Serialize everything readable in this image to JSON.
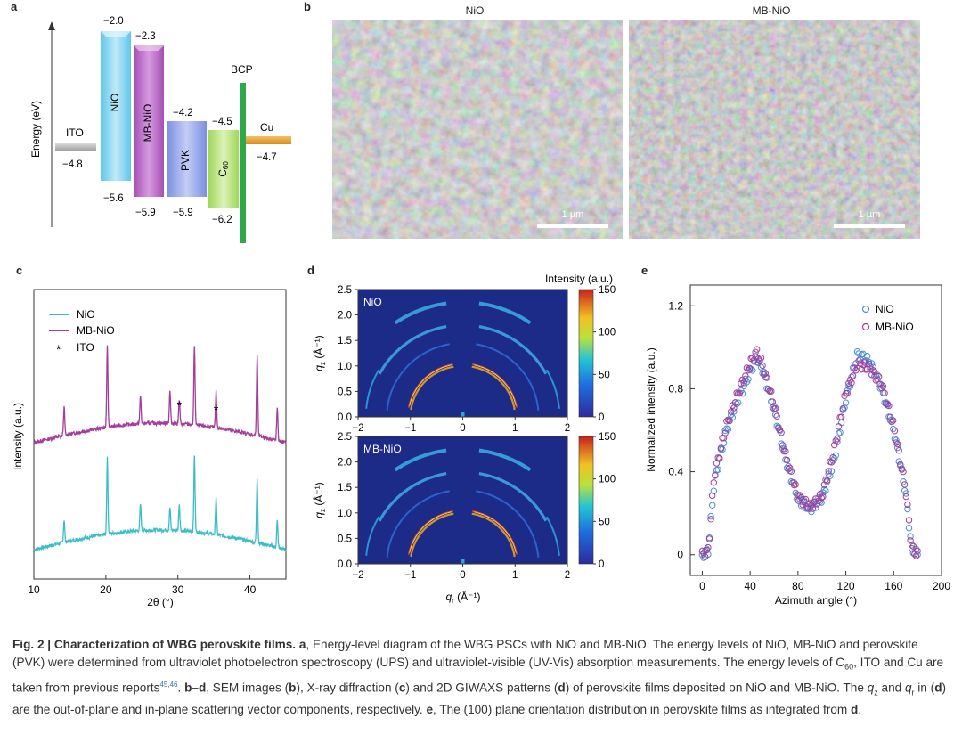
{
  "panels": {
    "a": "a",
    "b": "b",
    "c": "c",
    "d": "d",
    "e": "e"
  },
  "panel_a": {
    "ylabel": "Energy (eV)",
    "layers": [
      {
        "name": "ITO",
        "top": "-4.8",
        "bottom": "",
        "color": "#b5b5b5"
      },
      {
        "name": "NiO",
        "top": "−2.0",
        "bottom": "−5.6",
        "color": "#7fd3ee"
      },
      {
        "name": "MB-NiO",
        "top": "−2.3",
        "bottom": "−5.9",
        "color": "#b85fc2"
      },
      {
        "name": "PVK",
        "top": "−4.2",
        "bottom": "−5.9",
        "color": "#8a9ee6"
      },
      {
        "name": "C",
        "name_sub": "60",
        "top": "−4.5",
        "bottom": "−6.2",
        "color": "#b5e07a"
      },
      {
        "name": "BCP",
        "color": "#2fa84a"
      },
      {
        "name": "Cu",
        "top": "−4.7",
        "color": "#e8a23a"
      }
    ],
    "ito_label": "ITO",
    "ito_value": "−4.8",
    "cu_label": "Cu",
    "cu_value": "−4.7",
    "bcp_label": "BCP"
  },
  "panel_b": {
    "images": [
      {
        "title": "NiO",
        "scale": "1 µm"
      },
      {
        "title": "MB-NiO",
        "scale": "1 µm"
      }
    ]
  },
  "chart_data": [
    {
      "type": "line",
      "title": "",
      "xlabel": "2θ (°)",
      "ylabel": "Intensity (a.u.)",
      "xlim": [
        10,
        45
      ],
      "xticks": [
        10,
        20,
        30,
        40
      ],
      "legend": [
        {
          "name": "NiO",
          "color": "#3bbdc8",
          "marker": "line"
        },
        {
          "name": "MB-NiO",
          "color": "#a43c9c",
          "marker": "line"
        },
        {
          "name": "ITO",
          "marker": "*"
        }
      ],
      "series": [
        {
          "name": "NiO",
          "color": "#3bbdc8",
          "peaks": [
            14.2,
            20.2,
            24.8,
            28.9,
            30.2,
            32.3,
            35.3,
            41.0,
            43.8
          ],
          "peak_heights": [
            0.3,
            1.0,
            0.35,
            0.3,
            0.35,
            1.0,
            0.5,
            0.85,
            0.35
          ]
        },
        {
          "name": "MB-NiO",
          "color": "#a43c9c",
          "peaks": [
            14.2,
            20.2,
            24.8,
            28.9,
            30.2,
            32.3,
            35.3,
            41.0,
            43.8
          ],
          "peak_heights": [
            0.35,
            1.0,
            0.35,
            0.4,
            0.3,
            1.0,
            0.45,
            1.0,
            0.4
          ]
        }
      ],
      "annotations": [
        {
          "text": "*",
          "x": 30.2
        },
        {
          "text": "*",
          "x": 35.3
        }
      ]
    },
    {
      "type": "heatmap",
      "panels": [
        {
          "label": "NiO"
        },
        {
          "label": "MB-NiO"
        }
      ],
      "xlabel": "q",
      "xlabel_sub": "r",
      "xlabel_unit": " (Å⁻¹)",
      "ylabel": "q",
      "ylabel_sub": "z",
      "ylabel_unit": " (Å⁻¹)",
      "xlim": [
        -2,
        2
      ],
      "ylim": [
        0,
        2.5
      ],
      "xticks": [
        -2,
        -1,
        0,
        1,
        2
      ],
      "yticks": [
        0,
        0.5,
        1.0,
        1.5,
        2.0,
        2.5
      ],
      "colorbar": {
        "title": "Intensity (a.u.)",
        "ticks": [
          0,
          50,
          100,
          150
        ]
      },
      "rings_q": [
        1.0,
        1.05,
        1.7,
        2.1
      ]
    },
    {
      "type": "scatter",
      "xlabel": "Azimuth angle (°)",
      "ylabel": "Normalized intensity (a.u.)",
      "xlim": [
        -10,
        200
      ],
      "ylim": [
        -0.1,
        1.3
      ],
      "xticks": [
        0,
        40,
        80,
        120,
        160,
        200
      ],
      "yticks": [
        0,
        0.4,
        0.8,
        1.2
      ],
      "legend": [
        {
          "name": "NiO",
          "color": "#4a8fd8"
        },
        {
          "name": "MB-NiO",
          "color": "#a43c9c"
        }
      ],
      "series": [
        {
          "name": "NiO",
          "color": "#4a8fd8",
          "x": [
            0,
            5,
            10,
            20,
            30,
            40,
            45,
            50,
            60,
            70,
            80,
            90,
            100,
            110,
            120,
            130,
            140,
            150,
            160,
            170,
            175,
            180
          ],
          "y": [
            0,
            0.02,
            0.35,
            0.6,
            0.75,
            0.88,
            0.95,
            0.9,
            0.7,
            0.45,
            0.27,
            0.22,
            0.27,
            0.45,
            0.75,
            0.97,
            0.93,
            0.8,
            0.6,
            0.3,
            0.03,
            0
          ]
        },
        {
          "name": "MB-NiO",
          "color": "#a43c9c",
          "x": [
            0,
            5,
            10,
            20,
            30,
            40,
            45,
            50,
            60,
            70,
            80,
            90,
            100,
            110,
            120,
            130,
            140,
            150,
            160,
            170,
            175,
            180
          ],
          "y": [
            0,
            0.02,
            0.38,
            0.62,
            0.78,
            0.92,
            0.98,
            0.92,
            0.72,
            0.47,
            0.28,
            0.23,
            0.28,
            0.5,
            0.78,
            0.92,
            0.9,
            0.82,
            0.62,
            0.32,
            0.03,
            0
          ]
        }
      ]
    }
  ],
  "caption": {
    "fig": "Fig. 2 | Characterization of WBG perovskite films.",
    "t1": " a",
    "t2": ", Energy-level diagram of the WBG PSCs with NiO and MB-NiO. The energy levels of NiO, MB-NiO and perovskite (PVK) were determined from ultraviolet photoelectron spectroscopy (UPS) and ultraviolet-visible (UV-Vis) absorption measurements. The energy levels of C",
    "sub60": "60",
    "t3": ", ITO and Cu are taken from previous reports",
    "refs": "45,46",
    "t4": ". ",
    "t5": "b",
    "t6": "–",
    "t7": "d",
    "t8": ", SEM images (",
    "t9": "b",
    "t10": "), X-ray diffraction (",
    "t11": "c",
    "t12": ") and 2D GIWAXS patterns (",
    "t13": "d",
    "t14": ") of perovskite films deposited on NiO and MB-NiO. The ",
    "qz": "q",
    "qz_sub": "z",
    "t15": " and ",
    "qr": "q",
    "qr_sub": "r",
    "t16": " in (",
    "t17": "d",
    "t18": ") are the out-of-plane and in-plane scattering vector components, respectively. ",
    "t19": "e",
    "t20": ", The (100) plane orientation distribution in perovskite films as integrated from ",
    "t21": "d",
    "t22": "."
  }
}
